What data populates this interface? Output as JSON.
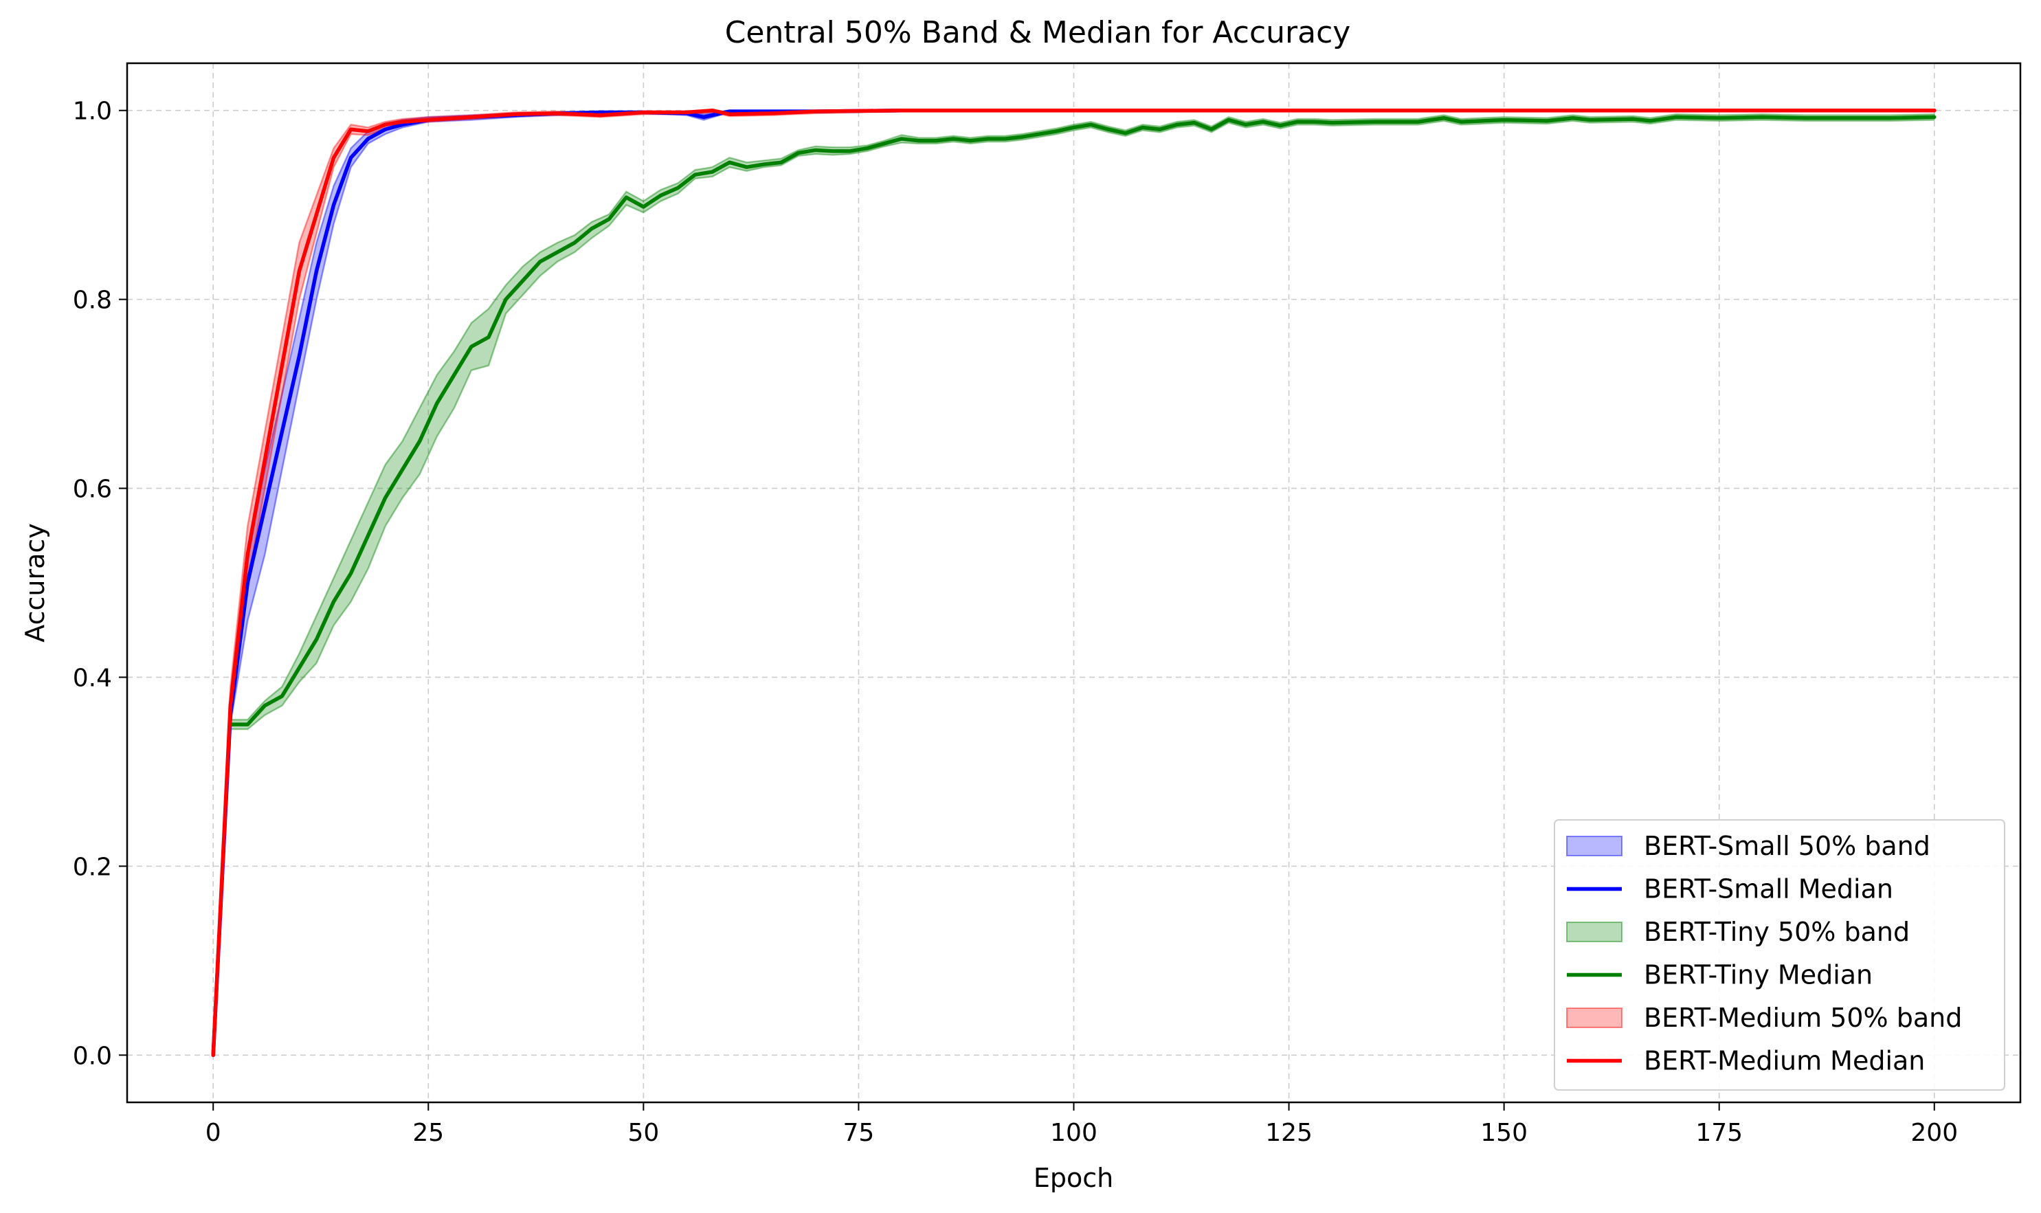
{
  "chart_data": {
    "type": "line",
    "title": "Central 50% Band & Median for Accuracy",
    "xlabel": "Epoch",
    "ylabel": "Accuracy",
    "xlim": [
      -10,
      210
    ],
    "ylim": [
      -0.05,
      1.05
    ],
    "xticks": [
      0,
      25,
      50,
      75,
      100,
      125,
      150,
      175,
      200
    ],
    "xtick_labels": [
      "0",
      "25",
      "50",
      "75",
      "100",
      "125",
      "150",
      "175",
      "200"
    ],
    "yticks": [
      0.0,
      0.2,
      0.4,
      0.6,
      0.8,
      1.0
    ],
    "ytick_labels": [
      "0.0",
      "0.2",
      "0.4",
      "0.6",
      "0.8",
      "1.0"
    ],
    "grid": true,
    "legend_position": "lower-right",
    "series": [
      {
        "name": "BERT-Small",
        "band_label": "BERT-Small 50% band",
        "median_label": "BERT-Small Median",
        "color": "#0000ff",
        "band_color": "#0000ff",
        "x": [
          0,
          2,
          4,
          6,
          8,
          10,
          12,
          14,
          16,
          18,
          20,
          22,
          25,
          30,
          35,
          40,
          45,
          50,
          55,
          57,
          60,
          65,
          70,
          80,
          90,
          100,
          125,
          150,
          175,
          200
        ],
        "median": [
          0.0,
          0.36,
          0.5,
          0.58,
          0.66,
          0.74,
          0.83,
          0.9,
          0.95,
          0.97,
          0.98,
          0.985,
          0.99,
          0.993,
          0.995,
          0.997,
          0.998,
          0.998,
          0.997,
          0.993,
          0.999,
          0.999,
          0.999,
          1.0,
          1.0,
          1.0,
          1.0,
          1.0,
          1.0,
          1.0
        ],
        "q25": [
          0.0,
          0.35,
          0.46,
          0.53,
          0.62,
          0.71,
          0.8,
          0.88,
          0.94,
          0.965,
          0.975,
          0.982,
          0.988,
          0.99,
          0.993,
          0.995,
          0.996,
          0.997,
          0.995,
          0.99,
          0.998,
          0.998,
          0.998,
          0.999,
          0.999,
          0.999,
          0.999,
          0.999,
          0.999,
          0.999
        ],
        "q75": [
          0.0,
          0.38,
          0.53,
          0.62,
          0.7,
          0.78,
          0.86,
          0.92,
          0.96,
          0.978,
          0.986,
          0.99,
          0.993,
          0.995,
          0.997,
          0.998,
          0.999,
          0.999,
          0.999,
          0.996,
          1.0,
          1.0,
          1.0,
          1.0,
          1.0,
          1.0,
          1.0,
          1.0,
          1.0,
          1.0
        ]
      },
      {
        "name": "BERT-Tiny",
        "band_label": "BERT-Tiny 50% band",
        "median_label": "BERT-Tiny Median",
        "color": "#008000",
        "band_color": "#008000",
        "x": [
          2,
          4,
          6,
          8,
          10,
          12,
          14,
          16,
          18,
          20,
          22,
          24,
          26,
          28,
          30,
          32,
          34,
          36,
          38,
          40,
          42,
          44,
          46,
          48,
          50,
          52,
          54,
          56,
          58,
          60,
          62,
          64,
          66,
          68,
          70,
          72,
          74,
          76,
          78,
          80,
          82,
          84,
          86,
          88,
          90,
          92,
          94,
          96,
          98,
          100,
          102,
          104,
          106,
          108,
          110,
          112,
          114,
          116,
          118,
          120,
          122,
          124,
          126,
          128,
          130,
          135,
          140,
          143,
          145,
          150,
          155,
          158,
          160,
          165,
          167,
          170,
          175,
          180,
          185,
          190,
          195,
          200
        ],
        "median": [
          0.35,
          0.35,
          0.37,
          0.38,
          0.41,
          0.44,
          0.48,
          0.51,
          0.55,
          0.59,
          0.62,
          0.65,
          0.69,
          0.72,
          0.75,
          0.76,
          0.8,
          0.82,
          0.84,
          0.85,
          0.86,
          0.875,
          0.885,
          0.908,
          0.898,
          0.91,
          0.918,
          0.932,
          0.935,
          0.945,
          0.94,
          0.943,
          0.945,
          0.955,
          0.958,
          0.957,
          0.957,
          0.96,
          0.965,
          0.97,
          0.968,
          0.968,
          0.97,
          0.968,
          0.97,
          0.97,
          0.972,
          0.975,
          0.978,
          0.982,
          0.985,
          0.98,
          0.976,
          0.982,
          0.98,
          0.985,
          0.987,
          0.98,
          0.99,
          0.985,
          0.988,
          0.984,
          0.988,
          0.988,
          0.987,
          0.988,
          0.988,
          0.992,
          0.988,
          0.99,
          0.989,
          0.992,
          0.99,
          0.991,
          0.989,
          0.993,
          0.992,
          0.993,
          0.992,
          0.992,
          0.992,
          0.993
        ],
        "q25": [
          0.345,
          0.345,
          0.36,
          0.37,
          0.395,
          0.415,
          0.455,
          0.48,
          0.515,
          0.56,
          0.59,
          0.615,
          0.655,
          0.685,
          0.725,
          0.73,
          0.785,
          0.805,
          0.825,
          0.84,
          0.85,
          0.865,
          0.878,
          0.9,
          0.892,
          0.904,
          0.912,
          0.928,
          0.93,
          0.94,
          0.936,
          0.94,
          0.942,
          0.952,
          0.954,
          0.953,
          0.954,
          0.957,
          0.962,
          0.966,
          0.965,
          0.965,
          0.967,
          0.965,
          0.967,
          0.967,
          0.969,
          0.972,
          0.975,
          0.979,
          0.982,
          0.977,
          0.973,
          0.979,
          0.977,
          0.982,
          0.984,
          0.977,
          0.987,
          0.982,
          0.985,
          0.981,
          0.985,
          0.985,
          0.984,
          0.985,
          0.985,
          0.989,
          0.985,
          0.987,
          0.986,
          0.989,
          0.987,
          0.988,
          0.986,
          0.99,
          0.989,
          0.99,
          0.989,
          0.989,
          0.989,
          0.99
        ],
        "q75": [
          0.355,
          0.355,
          0.375,
          0.39,
          0.425,
          0.465,
          0.505,
          0.545,
          0.585,
          0.625,
          0.65,
          0.685,
          0.72,
          0.745,
          0.775,
          0.79,
          0.815,
          0.835,
          0.85,
          0.86,
          0.868,
          0.882,
          0.89,
          0.914,
          0.904,
          0.916,
          0.923,
          0.937,
          0.94,
          0.95,
          0.945,
          0.947,
          0.949,
          0.958,
          0.962,
          0.961,
          0.961,
          0.963,
          0.968,
          0.974,
          0.971,
          0.971,
          0.973,
          0.971,
          0.973,
          0.973,
          0.975,
          0.978,
          0.981,
          0.985,
          0.988,
          0.983,
          0.979,
          0.985,
          0.983,
          0.988,
          0.99,
          0.983,
          0.993,
          0.988,
          0.991,
          0.987,
          0.991,
          0.991,
          0.99,
          0.991,
          0.991,
          0.995,
          0.991,
          0.993,
          0.992,
          0.995,
          0.993,
          0.994,
          0.992,
          0.996,
          0.995,
          0.996,
          0.995,
          0.995,
          0.995,
          0.996
        ]
      },
      {
        "name": "BERT-Medium",
        "band_label": "BERT-Medium 50% band",
        "median_label": "BERT-Medium Median",
        "color": "#ff0000",
        "band_color": "#ff0000",
        "x": [
          0,
          2,
          4,
          6,
          8,
          10,
          12,
          14,
          16,
          18,
          20,
          22,
          25,
          30,
          35,
          40,
          45,
          50,
          55,
          58,
          60,
          65,
          70,
          80,
          90,
          100,
          125,
          150,
          175,
          200
        ],
        "median": [
          0.0,
          0.37,
          0.53,
          0.63,
          0.73,
          0.83,
          0.89,
          0.95,
          0.98,
          0.978,
          0.985,
          0.988,
          0.99,
          0.993,
          0.996,
          0.997,
          0.995,
          0.998,
          0.998,
          1.0,
          0.996,
          0.997,
          0.999,
          1.0,
          1.0,
          1.0,
          1.0,
          1.0,
          1.0,
          1.0
        ],
        "q25": [
          0.0,
          0.36,
          0.5,
          0.6,
          0.7,
          0.8,
          0.87,
          0.94,
          0.975,
          0.974,
          0.981,
          0.985,
          0.988,
          0.991,
          0.994,
          0.995,
          0.993,
          0.996,
          0.996,
          0.998,
          0.994,
          0.995,
          0.997,
          0.999,
          0.999,
          0.999,
          0.999,
          0.999,
          0.999,
          0.999
        ],
        "q75": [
          0.0,
          0.39,
          0.56,
          0.66,
          0.76,
          0.86,
          0.91,
          0.96,
          0.985,
          0.982,
          0.988,
          0.991,
          0.993,
          0.995,
          0.998,
          0.999,
          0.997,
          0.999,
          0.999,
          1.0,
          0.998,
          0.999,
          1.0,
          1.0,
          1.0,
          1.0,
          1.0,
          1.0,
          1.0,
          1.0
        ]
      }
    ]
  }
}
